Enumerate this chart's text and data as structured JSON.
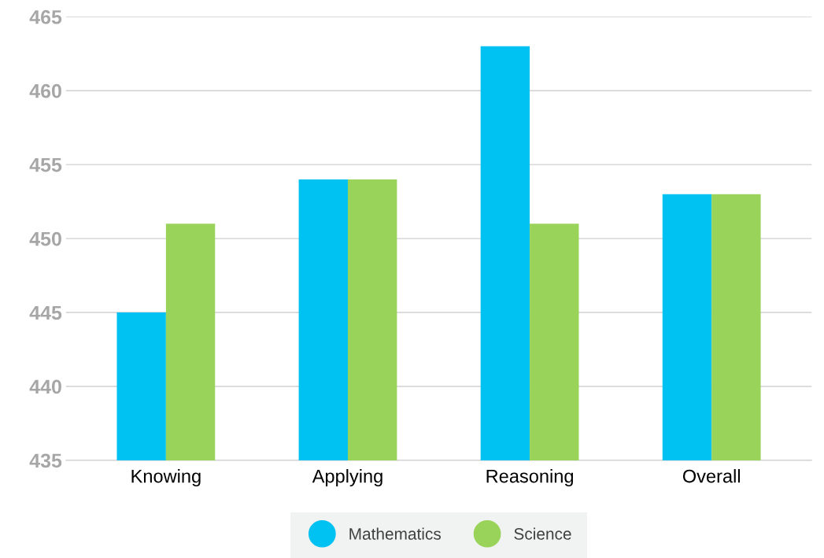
{
  "chart_data": {
    "type": "bar",
    "categories": [
      "Knowing",
      "Applying",
      "Reasoning",
      "Overall"
    ],
    "series": [
      {
        "name": "Mathematics",
        "color": "#00c2f2",
        "values": [
          445,
          454,
          463,
          453
        ]
      },
      {
        "name": "Science",
        "color": "#9ad35a",
        "values": [
          451,
          454,
          451,
          453
        ]
      }
    ],
    "ylim": [
      435,
      465
    ],
    "yticks": [
      435,
      440,
      445,
      450,
      455,
      460,
      465
    ],
    "grid": "y",
    "legend": "bottom",
    "marker": "circle"
  }
}
